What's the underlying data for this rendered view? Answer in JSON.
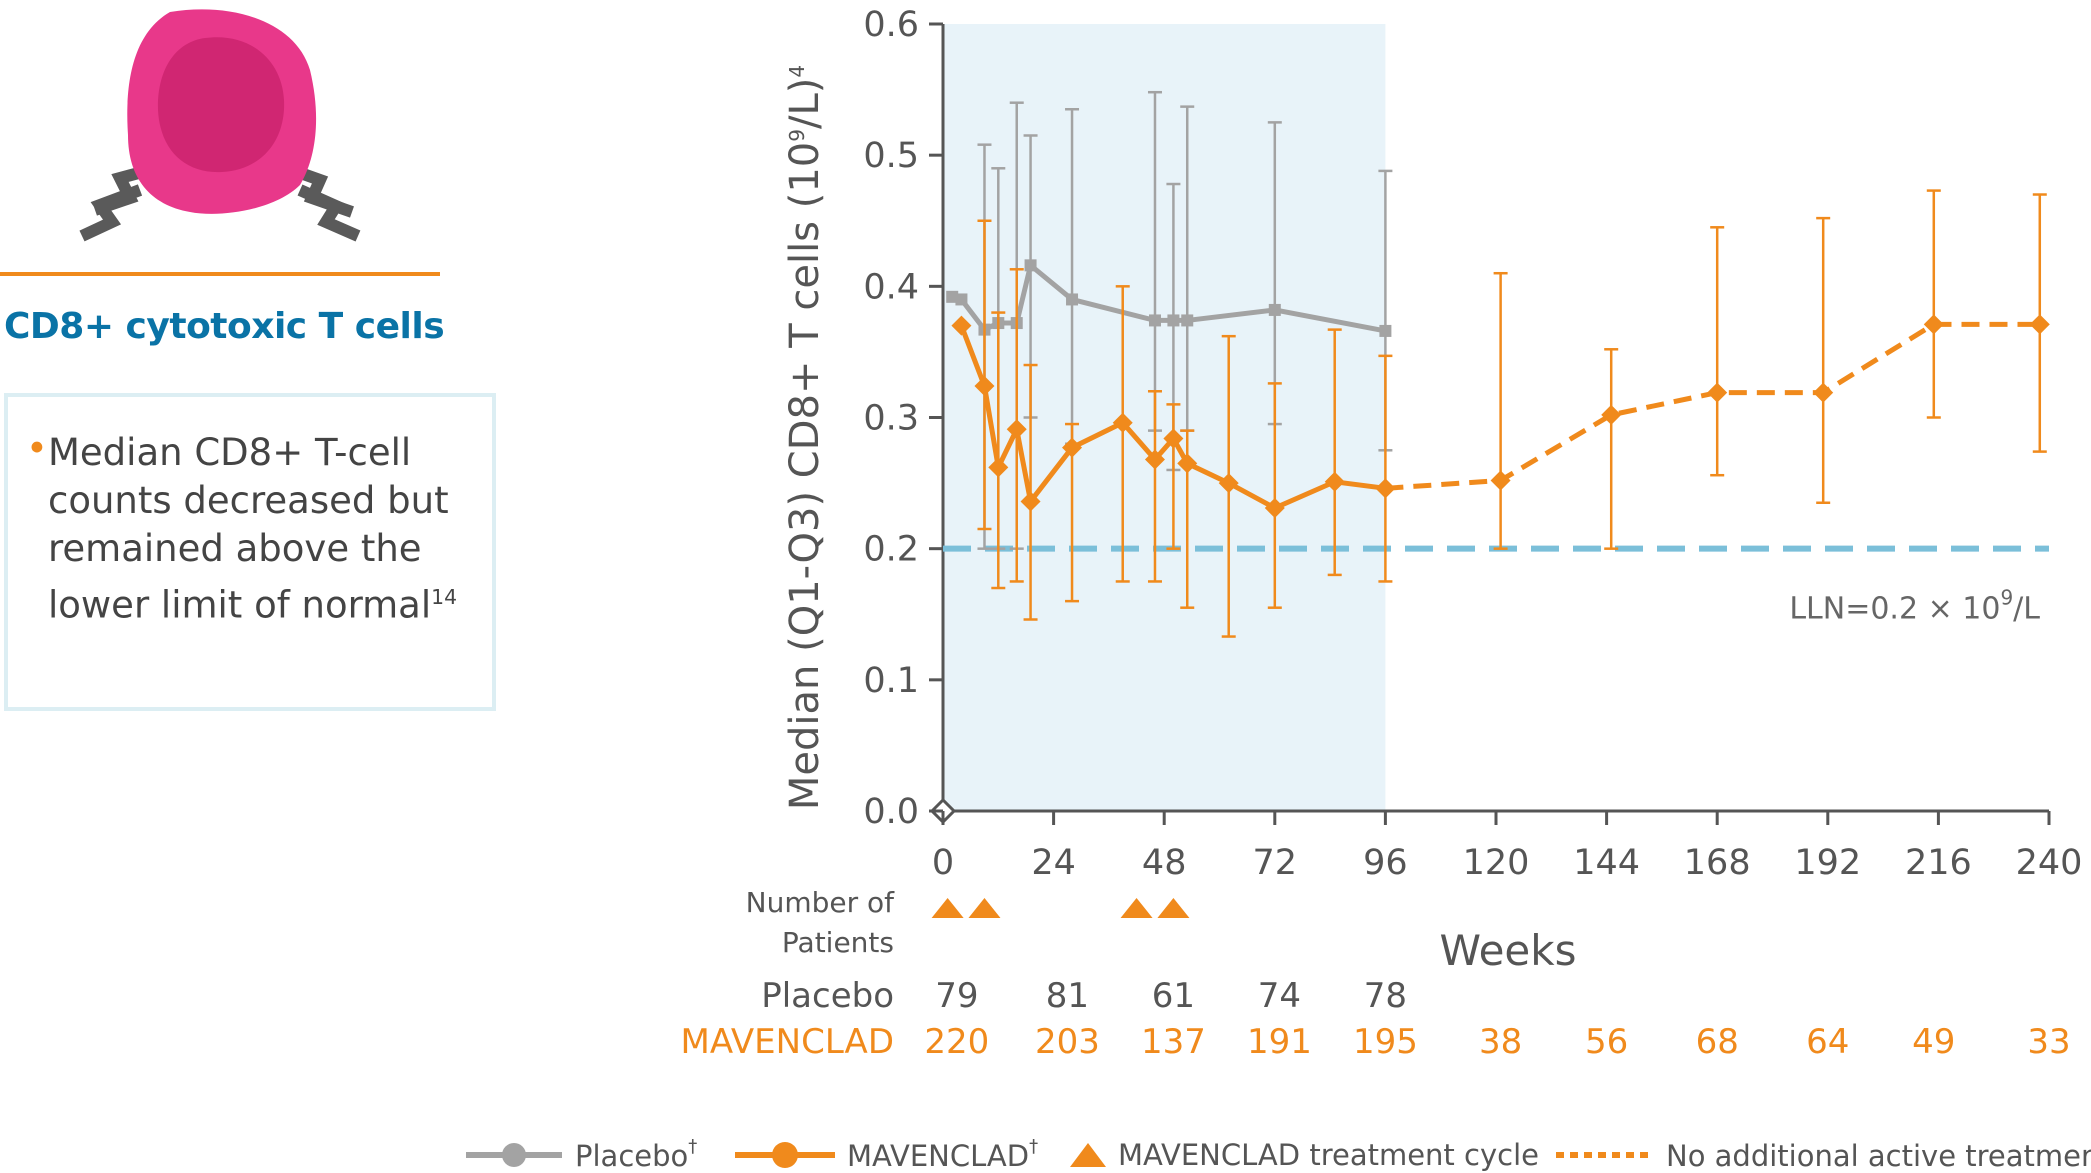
{
  "panel": {
    "title": "CD8+ cytotoxic T cells",
    "bullet": "Median CD8+ T-cell counts decreased but remained above the lower limit of normal",
    "bullet_ref": "14",
    "icon": "t-cell-icon"
  },
  "colors": {
    "placebo": "#a3a3a3",
    "mavenclad": "#f08a1c",
    "lln": "#7bbfd9",
    "shade": "#e8f3f9",
    "title": "#0a73a6",
    "axis": "#555555",
    "cell_outer": "#e8388a",
    "cell_inner": "#d02672"
  },
  "chart_data": {
    "type": "line",
    "ylabel": "Median (Q1-Q3) CD8+ T cells (10",
    "ylabel_sup": "9",
    "ylabel_tail": "/L)",
    "ylabel_ref": "4",
    "xlabel": "Weeks",
    "ylim": [
      0.0,
      0.6
    ],
    "xlim": [
      0,
      240
    ],
    "yticks": [
      "0.0",
      "0.1",
      "0.2",
      "0.3",
      "0.4",
      "0.5",
      "0.6"
    ],
    "xticks": [
      "0",
      "24",
      "48",
      "72",
      "96",
      "120",
      "144",
      "168",
      "192",
      "216",
      "240"
    ],
    "shaded_region": [
      0,
      96
    ],
    "lln": {
      "value": 0.2,
      "label": "LLN=0.2 × 10",
      "label_sup": "9",
      "label_tail": "/L"
    },
    "series": [
      {
        "name": "Placebo",
        "legend": "Placebo",
        "legend_ref": "†",
        "points": [
          {
            "x": 2,
            "y": 0.392,
            "lo": 0.392,
            "hi": 0.392
          },
          {
            "x": 4,
            "y": 0.39,
            "lo": 0.39,
            "hi": 0.39
          },
          {
            "x": 9,
            "y": 0.367,
            "lo": 0.2,
            "hi": 0.508
          },
          {
            "x": 12,
            "y": 0.372,
            "lo": 0.2,
            "hi": 0.49
          },
          {
            "x": 16,
            "y": 0.372,
            "lo": 0.2,
            "hi": 0.54
          },
          {
            "x": 19,
            "y": 0.416,
            "lo": 0.3,
            "hi": 0.515
          },
          {
            "x": 28,
            "y": 0.39,
            "lo": 0.28,
            "hi": 0.535
          },
          {
            "x": 46,
            "y": 0.374,
            "lo": 0.29,
            "hi": 0.548
          },
          {
            "x": 50,
            "y": 0.374,
            "lo": 0.26,
            "hi": 0.478
          },
          {
            "x": 53,
            "y": 0.374,
            "lo": 0.29,
            "hi": 0.537
          },
          {
            "x": 72,
            "y": 0.382,
            "lo": 0.295,
            "hi": 0.525
          },
          {
            "x": 96,
            "y": 0.366,
            "lo": 0.275,
            "hi": 0.488
          }
        ]
      },
      {
        "name": "MAVENCLAD",
        "legend": "MAVENCLAD",
        "legend_ref": "†",
        "points": [
          {
            "x": 4,
            "y": 0.37,
            "lo": 0.37,
            "hi": 0.37
          },
          {
            "x": 9,
            "y": 0.324,
            "lo": 0.215,
            "hi": 0.45
          },
          {
            "x": 12,
            "y": 0.262,
            "lo": 0.17,
            "hi": 0.38
          },
          {
            "x": 16,
            "y": 0.291,
            "lo": 0.175,
            "hi": 0.413
          },
          {
            "x": 19,
            "y": 0.236,
            "lo": 0.146,
            "hi": 0.34
          },
          {
            "x": 28,
            "y": 0.277,
            "lo": 0.16,
            "hi": 0.295
          },
          {
            "x": 39,
            "y": 0.296,
            "lo": 0.175,
            "hi": 0.4
          },
          {
            "x": 46,
            "y": 0.268,
            "lo": 0.175,
            "hi": 0.32
          },
          {
            "x": 50,
            "y": 0.284,
            "lo": 0.2,
            "hi": 0.31
          },
          {
            "x": 53,
            "y": 0.265,
            "lo": 0.155,
            "hi": 0.29
          },
          {
            "x": 62,
            "y": 0.25,
            "lo": 0.133,
            "hi": 0.362
          },
          {
            "x": 72,
            "y": 0.231,
            "lo": 0.155,
            "hi": 0.326
          },
          {
            "x": 85,
            "y": 0.251,
            "lo": 0.18,
            "hi": 0.367
          },
          {
            "x": 96,
            "y": 0.246,
            "lo": 0.175,
            "hi": 0.347
          },
          {
            "x": 121,
            "y": 0.252,
            "lo": 0.2,
            "hi": 0.41
          },
          {
            "x": 145,
            "y": 0.302,
            "lo": 0.2,
            "hi": 0.352
          },
          {
            "x": 168,
            "y": 0.319,
            "lo": 0.256,
            "hi": 0.445
          },
          {
            "x": 191,
            "y": 0.319,
            "lo": 0.235,
            "hi": 0.452
          },
          {
            "x": 215,
            "y": 0.371,
            "lo": 0.3,
            "hi": 0.473
          },
          {
            "x": 238,
            "y": 0.371,
            "lo": 0.274,
            "hi": 0.47
          }
        ]
      }
    ],
    "treatment_cycles": [
      1,
      9,
      42,
      50
    ],
    "patients": {
      "header_line1": "Number of",
      "header_line2": "Patients",
      "rows": [
        {
          "label": "Placebo",
          "counts": [
            {
              "x": 3,
              "n": "79"
            },
            {
              "x": 27,
              "n": "81"
            },
            {
              "x": 50,
              "n": "61"
            },
            {
              "x": 73,
              "n": "74"
            },
            {
              "x": 96,
              "n": "78"
            }
          ]
        },
        {
          "label": "MAVENCLAD",
          "counts": [
            {
              "x": 3,
              "n": "220"
            },
            {
              "x": 27,
              "n": "203"
            },
            {
              "x": 50,
              "n": "137"
            },
            {
              "x": 73,
              "n": "191"
            },
            {
              "x": 96,
              "n": "195"
            },
            {
              "x": 121,
              "n": "38"
            },
            {
              "x": 144,
              "n": "56"
            },
            {
              "x": 168,
              "n": "68"
            },
            {
              "x": 192,
              "n": "64"
            },
            {
              "x": 215,
              "n": "49"
            },
            {
              "x": 240,
              "n": "33"
            }
          ]
        }
      ]
    },
    "legend": {
      "placebo": "Placebo",
      "mavenclad": "MAVENCLAD",
      "ref": "†",
      "cycle": "MAVENCLAD treatment cycle",
      "no_treatment": "No additional active treatment"
    }
  }
}
